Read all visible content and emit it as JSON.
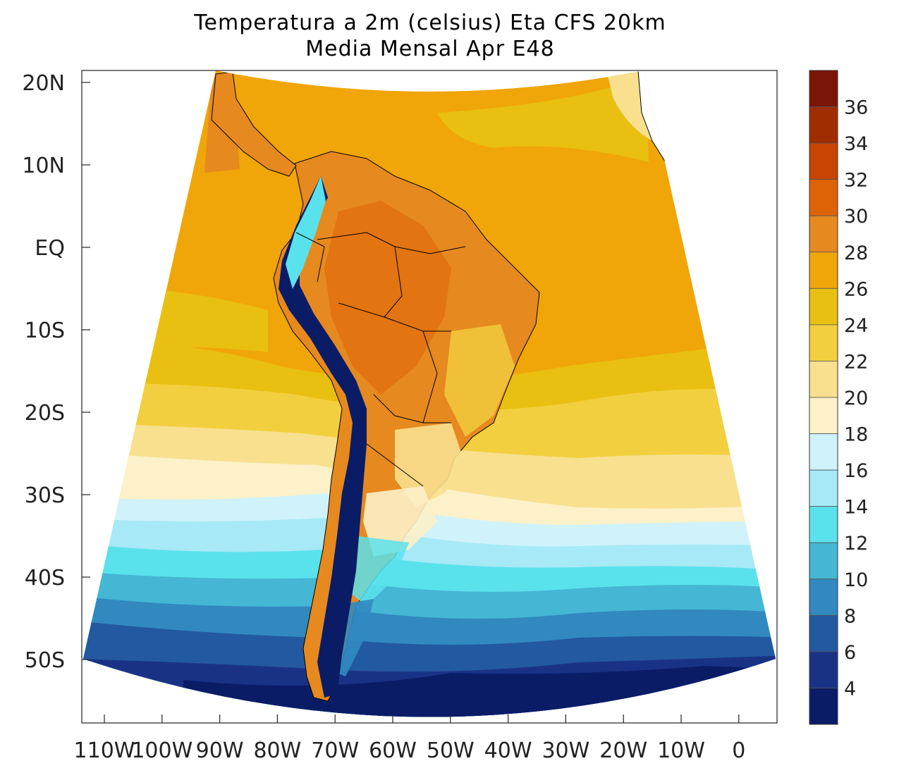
{
  "title_line1": "Temperatura a 2m (celsius) Eta CFS 20km",
  "title_line2": "Media Mensal Apr  E48",
  "lat_labels": [
    "20N",
    "10N",
    "EQ",
    "10S",
    "20S",
    "30S",
    "40S",
    "50S"
  ],
  "lon_labels": [
    "110W",
    "100W",
    "90W",
    "80W",
    "70W",
    "60W",
    "50W",
    "40W",
    "30W",
    "20W",
    "10W",
    "0"
  ],
  "colorbar": {
    "labels": [
      "36",
      "34",
      "32",
      "30",
      "28",
      "26",
      "24",
      "22",
      "20",
      "18",
      "16",
      "14",
      "12",
      "10",
      "8",
      "6",
      "4"
    ],
    "colors": [
      "#7a1608",
      "#a02c02",
      "#c84402",
      "#de6206",
      "#e6891f",
      "#f0a509",
      "#e9bf12",
      "#f2cf3e",
      "#f8e08f",
      "#fcf1c8",
      "#d0f3fb",
      "#a7e9f7",
      "#5ae2ec",
      "#45b6d4",
      "#3189c0",
      "#2359a0",
      "#1a3286",
      "#0b1c67"
    ]
  },
  "map": {
    "chart_data": {
      "type": "heatmap",
      "variable": "2 m air temperature",
      "units": "celsius",
      "model": "Eta CFS 20km",
      "period": "Media Mensal Apr",
      "member": "E48",
      "lon_range": [
        -115,
        6
      ],
      "lat_range": [
        -58,
        21
      ],
      "contour_levels": [
        4,
        6,
        8,
        10,
        12,
        14,
        16,
        18,
        20,
        22,
        24,
        26,
        28,
        30,
        32,
        34,
        36
      ]
    }
  }
}
